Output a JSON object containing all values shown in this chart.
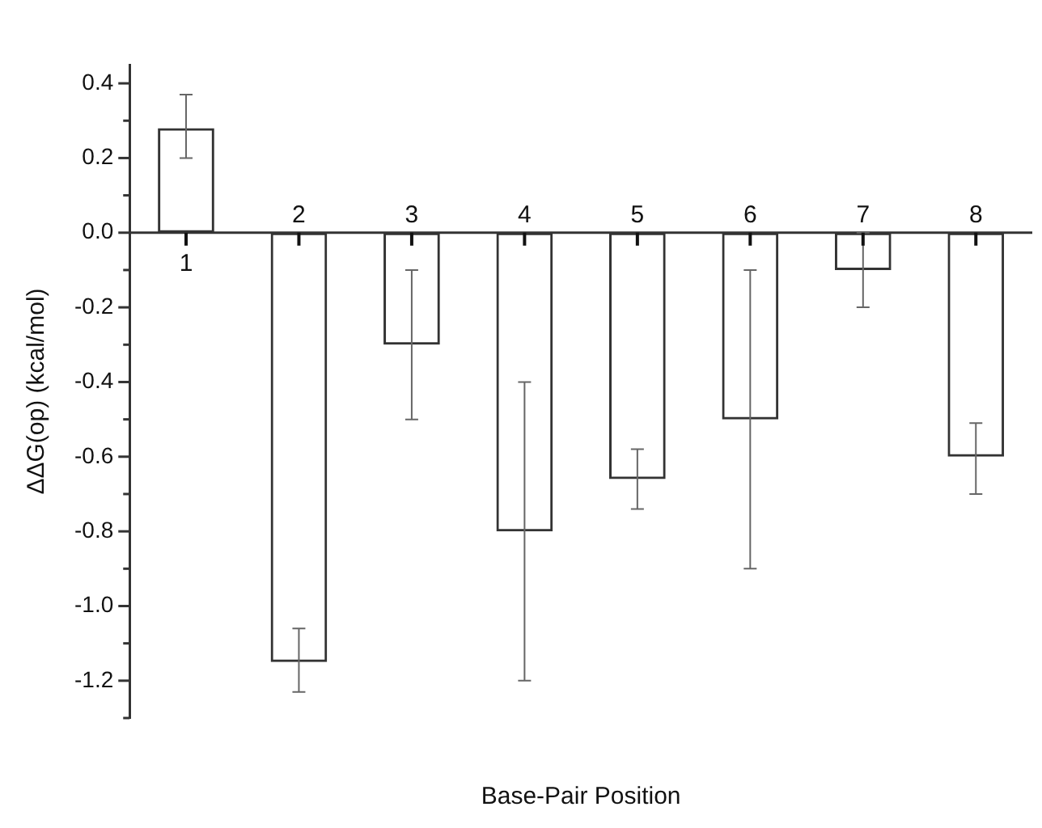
{
  "chart_data": {
    "type": "bar",
    "xlabel": "Base-Pair Position",
    "ylabel": "ΔΔG(op) (kcal/mol)",
    "categories": [
      "1",
      "2",
      "3",
      "4",
      "5",
      "6",
      "7",
      "8"
    ],
    "values": [
      0.28,
      -1.15,
      -0.3,
      -0.8,
      -0.66,
      -0.5,
      -0.1,
      -0.6
    ],
    "errors": [
      [
        0.2,
        0.37
      ],
      [
        -1.23,
        -1.06
      ],
      [
        -0.5,
        -0.1
      ],
      [
        -1.2,
        -0.4
      ],
      [
        -0.74,
        -0.58
      ],
      [
        -0.9,
        -0.1
      ],
      [
        -0.2,
        0
      ],
      [
        -0.7,
        -0.51
      ]
    ],
    "color": "#333333",
    "ylim": [
      -1.3,
      0.45
    ],
    "yticks": [
      {
        "value": -1.3,
        "label": null
      },
      {
        "value": -1.2,
        "label": "-1.2"
      },
      {
        "value": -1.1,
        "label": null
      },
      {
        "value": -1.0,
        "label": "-1.0"
      },
      {
        "value": -0.9,
        "label": null
      },
      {
        "value": -0.8,
        "label": "-0.8"
      },
      {
        "value": -0.7,
        "label": null
      },
      {
        "value": -0.6,
        "label": "-0.6"
      },
      {
        "value": -0.5,
        "label": null
      },
      {
        "value": -0.4,
        "label": "-0.4"
      },
      {
        "value": -0.3,
        "label": null
      },
      {
        "value": -0.2,
        "label": "-0.2"
      },
      {
        "value": -0.1,
        "label": null
      },
      {
        "value": 0.0,
        "label": "0.0"
      },
      {
        "value": 0.1,
        "label": null
      },
      {
        "value": 0.2,
        "label": "0.2"
      },
      {
        "value": 0.3,
        "label": null
      },
      {
        "value": 0.4,
        "label": "0.4"
      }
    ],
    "grid": false,
    "legend": false
  }
}
